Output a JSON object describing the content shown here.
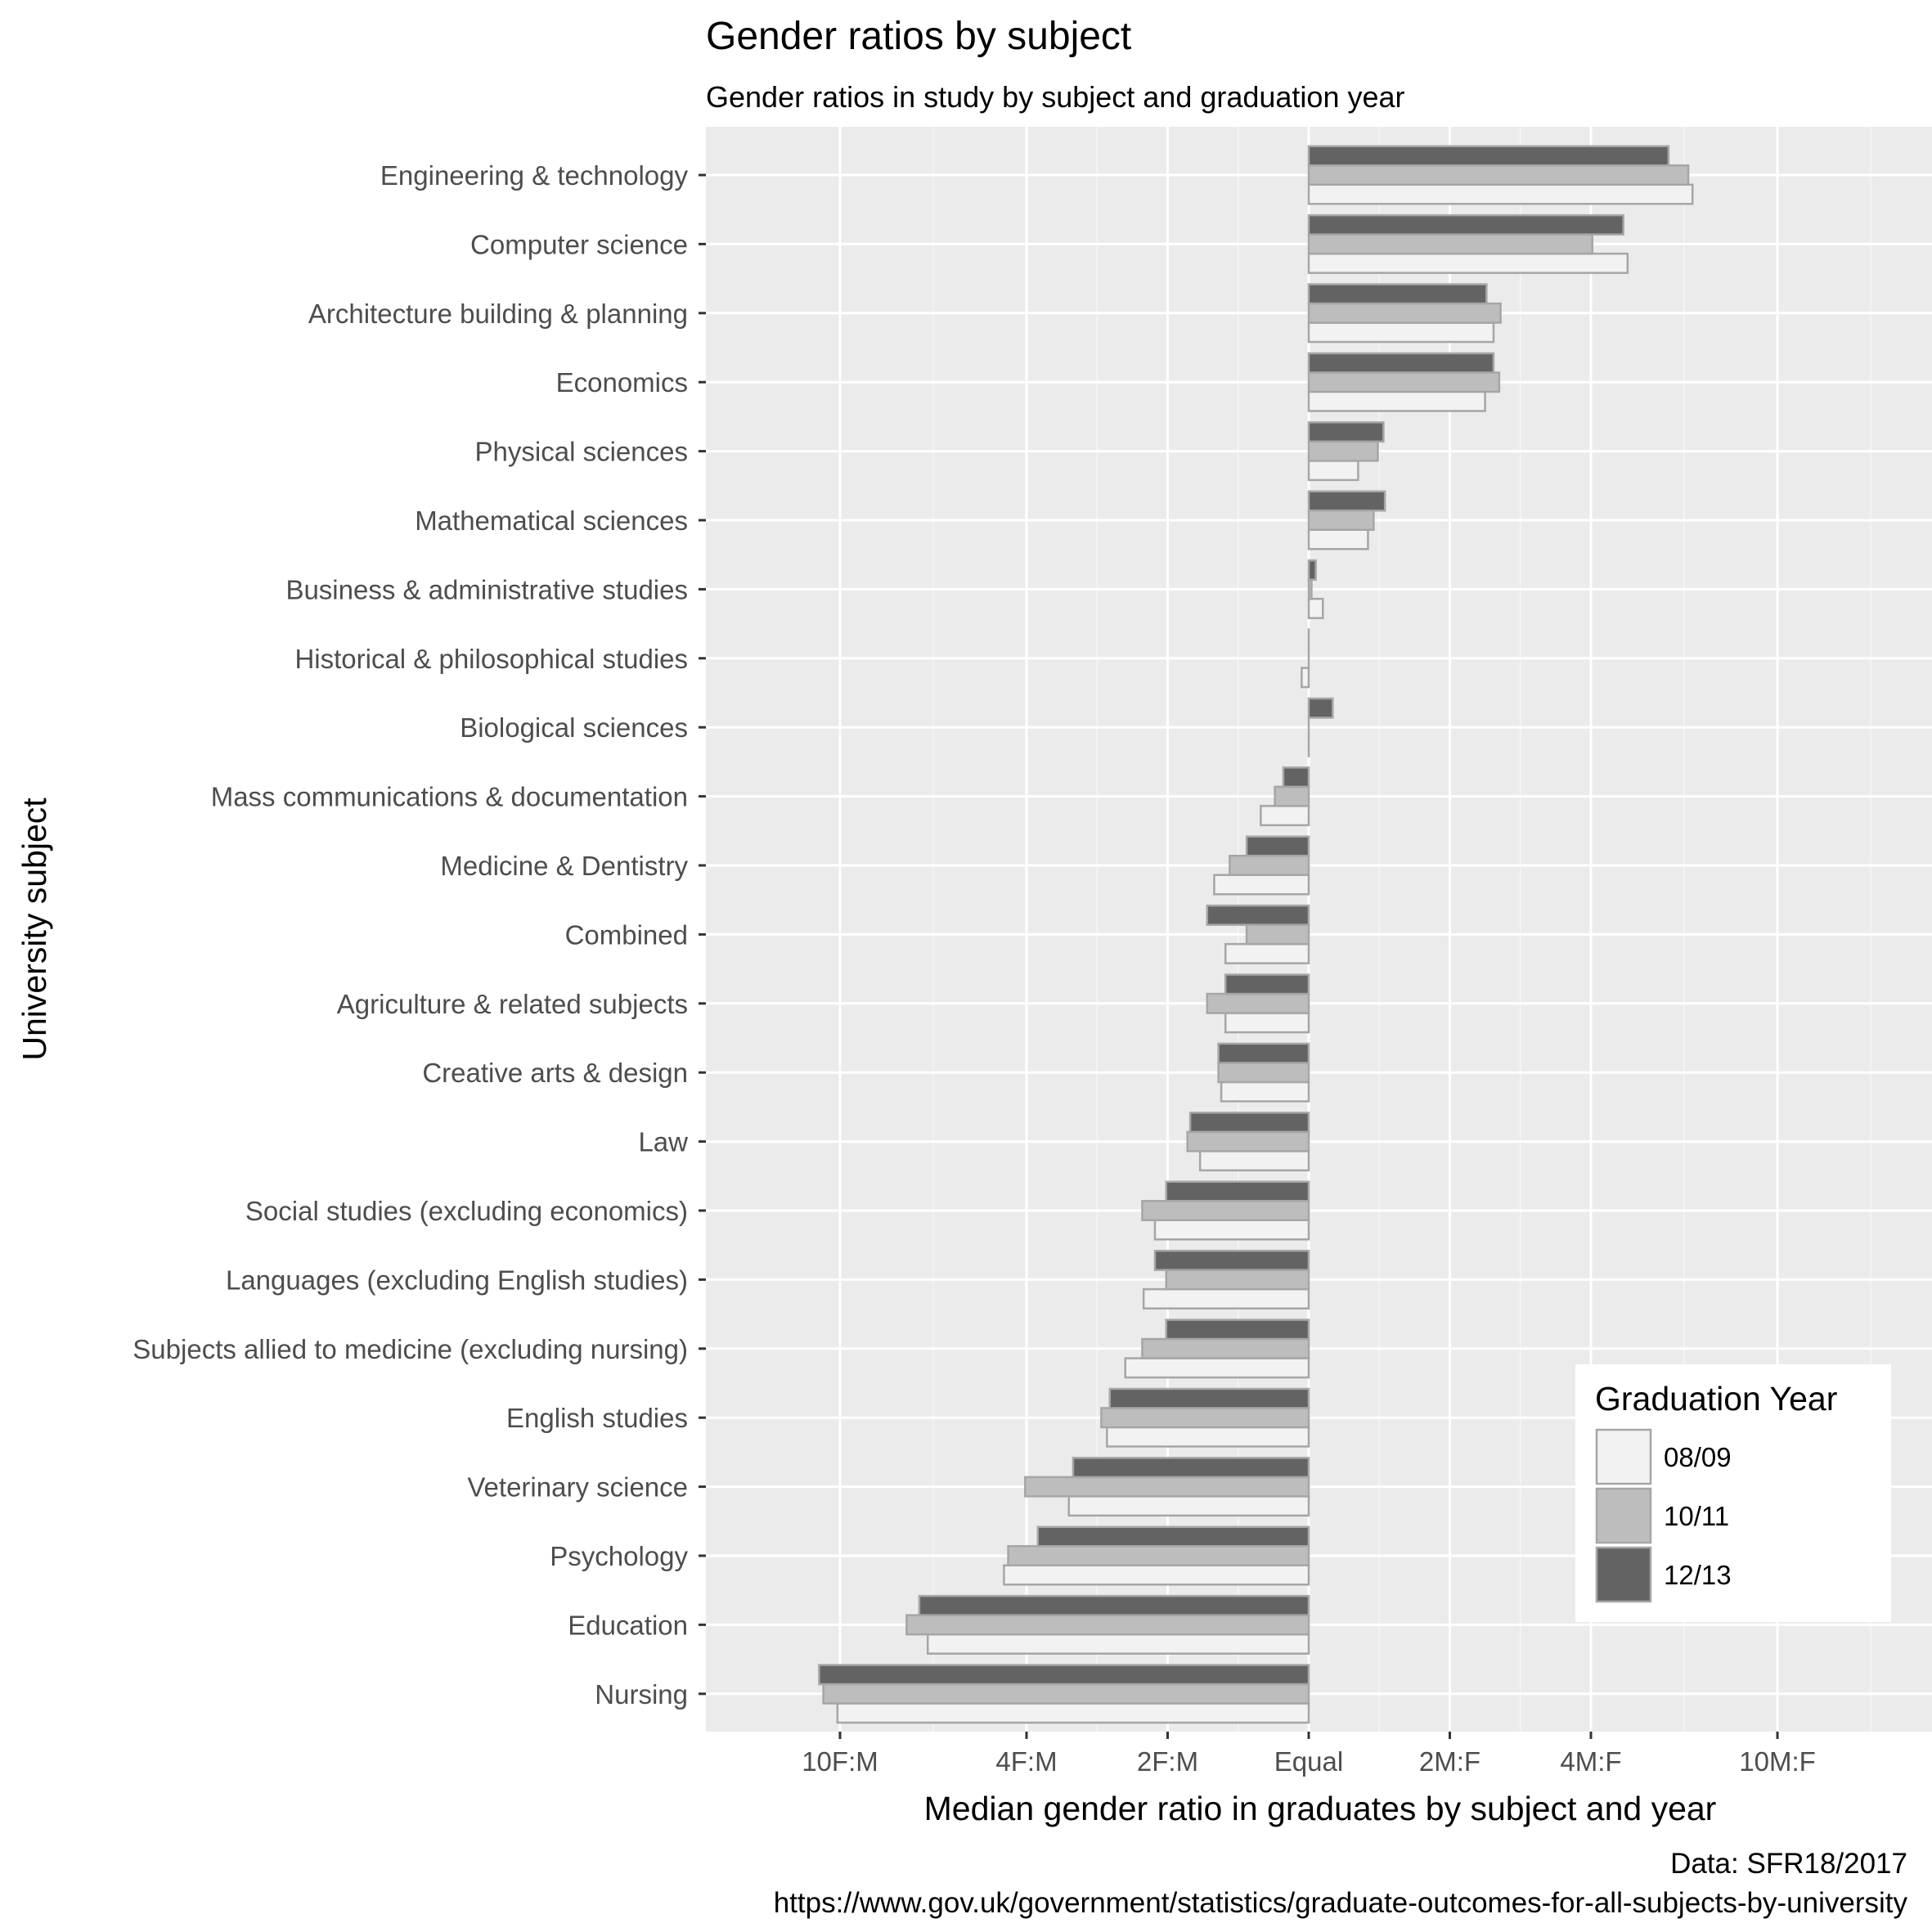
{
  "chart_data": {
    "type": "bar",
    "orientation": "horizontal",
    "title": "Gender ratios by subject",
    "subtitle": "Gender ratios in study by subject and graduation year",
    "xlabel": "Median gender ratio in graduates by subject and year",
    "ylabel": "University subject",
    "caption_lines": [
      "Data: SFR18/2017",
      "https://www.gov.uk/government/statistics/graduate-outcomes-for-all-subjects-by-university"
    ],
    "x_scale": "log2",
    "x_note": "values are log2 of gender ratio; negative = female-majority, positive = male-majority",
    "xlim": [
      -4.0,
      4.0
    ],
    "x_ticks": [
      {
        "value": -3.3219,
        "label": "10F:M"
      },
      {
        "value": -2,
        "label": "4F:M"
      },
      {
        "value": -1,
        "label": "2F:M"
      },
      {
        "value": 0,
        "label": "Equal"
      },
      {
        "value": 1,
        "label": "2M:F"
      },
      {
        "value": 2,
        "label": "4M:F"
      },
      {
        "value": 3.3219,
        "label": "10M:F"
      }
    ],
    "x_minor_ticks": [
      -2.661,
      -1.5,
      -0.5,
      0.5,
      1.5,
      2.661,
      3.9829
    ],
    "grid": true,
    "legend": {
      "title": "Graduation Year",
      "position": "bottom-right"
    },
    "categories": [
      "Engineering & technology",
      "Computer science",
      "Architecture building & planning",
      "Economics",
      "Physical sciences",
      "Mathematical sciences",
      "Business & administrative studies",
      "Historical & philosophical studies",
      "Biological sciences",
      "Mass communications & documentation",
      "Medicine & Dentistry",
      "Combined",
      "Agriculture & related subjects",
      "Creative arts & design",
      "Law",
      "Social studies (excluding economics)",
      "Languages (excluding English studies)",
      "Subjects allied to medicine (excluding nursing)",
      "English studies",
      "Veterinary science",
      "Psychology",
      "Education",
      "Nursing"
    ],
    "series": [
      {
        "name": "08/09",
        "color": "#f2f2f2",
        "values": [
          2.72,
          2.26,
          1.31,
          1.25,
          0.35,
          0.42,
          0.1,
          -0.05,
          0.0,
          -0.34,
          -0.67,
          -0.59,
          -0.59,
          -0.62,
          -0.77,
          -1.09,
          -1.17,
          -1.3,
          -1.43,
          -1.7,
          -2.16,
          -2.7,
          -3.34
        ]
      },
      {
        "name": "10/11",
        "color": "#bdbdbd",
        "values": [
          2.69,
          2.01,
          1.36,
          1.35,
          0.49,
          0.46,
          0.02,
          0.0,
          0.0,
          -0.24,
          -0.56,
          -0.44,
          -0.72,
          -0.64,
          -0.86,
          -1.18,
          -1.01,
          -1.18,
          -1.47,
          -2.01,
          -2.13,
          -2.85,
          -3.44
        ]
      },
      {
        "name": "12/13",
        "color": "#636363",
        "values": [
          2.55,
          2.23,
          1.26,
          1.31,
          0.53,
          0.54,
          0.05,
          0.0,
          0.17,
          -0.18,
          -0.44,
          -0.72,
          -0.59,
          -0.64,
          -0.84,
          -1.01,
          -1.09,
          -1.01,
          -1.41,
          -1.67,
          -1.92,
          -2.76,
          -3.47
        ]
      }
    ]
  }
}
